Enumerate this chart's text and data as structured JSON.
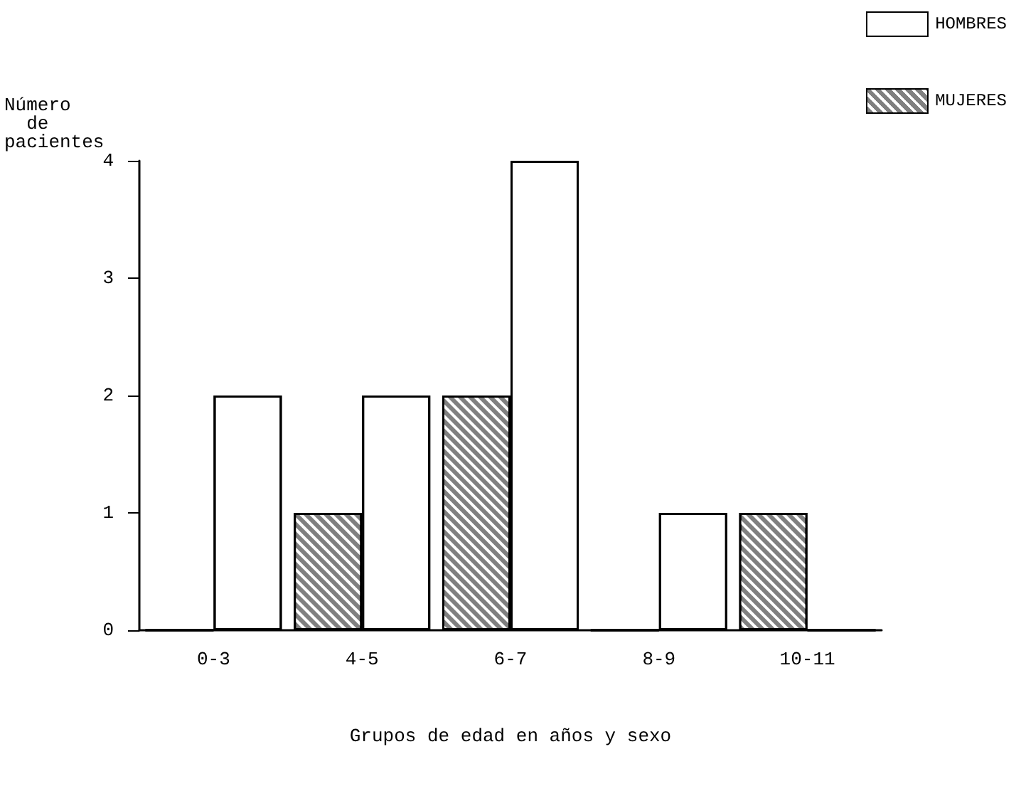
{
  "chart_data": {
    "type": "bar",
    "xlabel": "Grupos de edad en años y sexo",
    "ylabel": "Número\n  de\npacientes",
    "categories": [
      "0-3",
      "4-5",
      "6-7",
      "8-9",
      "10-11"
    ],
    "series": [
      {
        "name": "MUJERES",
        "color": "#808080",
        "values": [
          0,
          1,
          2,
          0,
          1
        ]
      },
      {
        "name": "HOMBRES",
        "color": "#ffffff",
        "values": [
          2,
          2,
          4,
          1,
          0
        ]
      }
    ],
    "ylim": [
      0,
      4
    ],
    "yticks": [
      0,
      1,
      2,
      3,
      4
    ],
    "grid": false,
    "legend": "top right"
  }
}
